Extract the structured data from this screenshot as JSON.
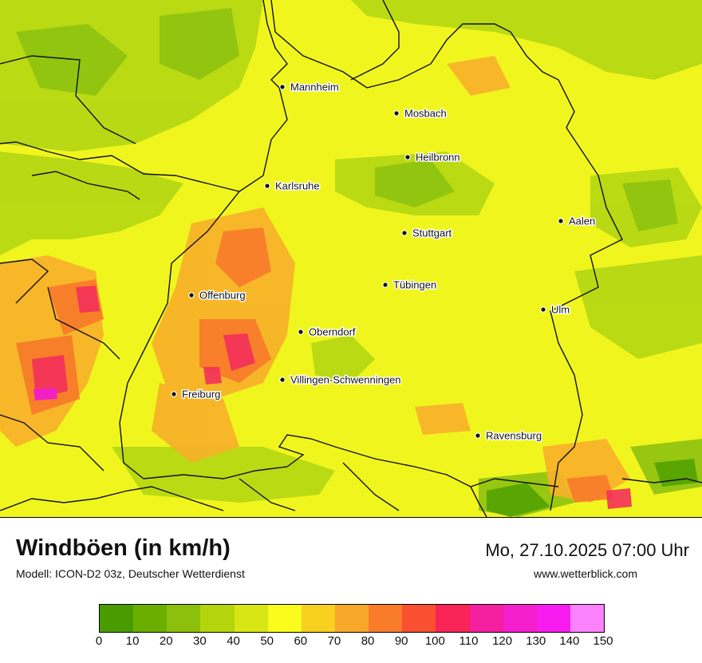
{
  "map": {
    "cities": [
      {
        "name": "Mannheim"
      },
      {
        "name": "Mosbach"
      },
      {
        "name": "Heilbronn"
      },
      {
        "name": "Karlsruhe"
      },
      {
        "name": "Aalen"
      },
      {
        "name": "Stuttgart"
      },
      {
        "name": "Tübingen"
      },
      {
        "name": "Offenburg"
      },
      {
        "name": "Ulm"
      },
      {
        "name": "Oberndorf"
      },
      {
        "name": "Villingen-Schwenningen"
      },
      {
        "name": "Freiburg"
      },
      {
        "name": "Ravensburg"
      }
    ]
  },
  "footer": {
    "title": "Windböen (in km/h)",
    "subtitle": "Modell: ICON-D2 03z, Deutscher Wetterdienst",
    "datetime": "Mo, 27.10.2025 07:00 Uhr",
    "website": "www.wetterblick.com"
  },
  "legend": {
    "ticks": [
      "0",
      "10",
      "20",
      "30",
      "40",
      "50",
      "60",
      "70",
      "80",
      "90",
      "100",
      "110",
      "120",
      "130",
      "140",
      "150"
    ],
    "colors": [
      "#4a9b00",
      "#6aae00",
      "#8cc00c",
      "#b4d40c",
      "#d8e614",
      "#fbfb1c",
      "#f8d020",
      "#f7a82a",
      "#f87c2a",
      "#f85030",
      "#f82458",
      "#f420a0",
      "#f41ecc",
      "#f81cf0",
      "#fb82fb"
    ]
  }
}
